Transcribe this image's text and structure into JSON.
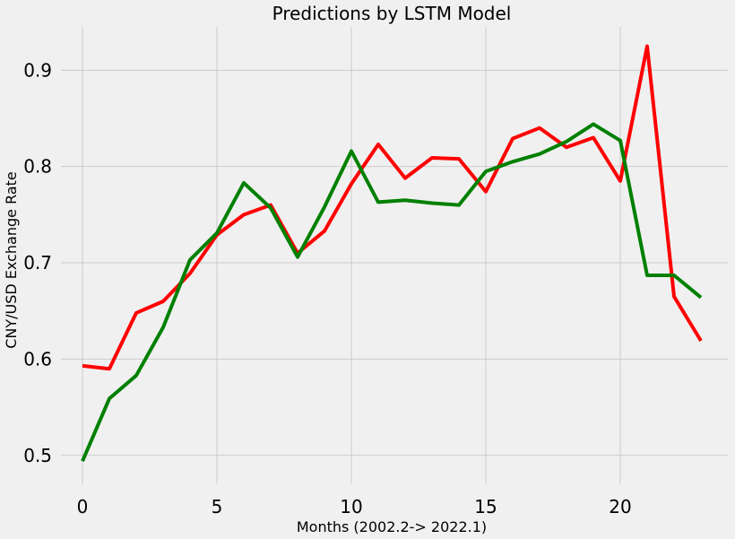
{
  "chart_data": {
    "type": "line",
    "title": "Predictions by LSTM Model",
    "xlabel": "Months (2002.2-> 2022.1)",
    "ylabel": "CNY/USD Exchange Rate",
    "x": [
      0,
      1,
      2,
      3,
      4,
      5,
      6,
      7,
      8,
      9,
      10,
      11,
      12,
      13,
      14,
      15,
      16,
      17,
      18,
      19,
      20,
      21,
      22,
      23
    ],
    "xlim": [
      -0.8,
      24.0
    ],
    "ylim": [
      0.47,
      0.945
    ],
    "xticks": [
      0,
      5,
      10,
      15,
      20
    ],
    "yticks": [
      0.5,
      0.6,
      0.7,
      0.8,
      0.9
    ],
    "grid": true,
    "series": [
      {
        "color": "#ff0000",
        "values": [
          0.593,
          0.59,
          0.648,
          0.66,
          0.689,
          0.729,
          0.75,
          0.76,
          0.71,
          0.733,
          0.782,
          0.823,
          0.788,
          0.809,
          0.808,
          0.774,
          0.829,
          0.84,
          0.82,
          0.83,
          0.785,
          0.925,
          0.665,
          0.619
        ]
      },
      {
        "color": "#008000",
        "values": [
          0.494,
          0.559,
          0.583,
          0.633,
          0.703,
          0.731,
          0.783,
          0.757,
          0.706,
          0.758,
          0.816,
          0.763,
          0.765,
          0.762,
          0.76,
          0.795,
          0.805,
          0.813,
          0.826,
          0.844,
          0.827,
          0.687,
          0.687,
          0.664
        ]
      }
    ]
  }
}
